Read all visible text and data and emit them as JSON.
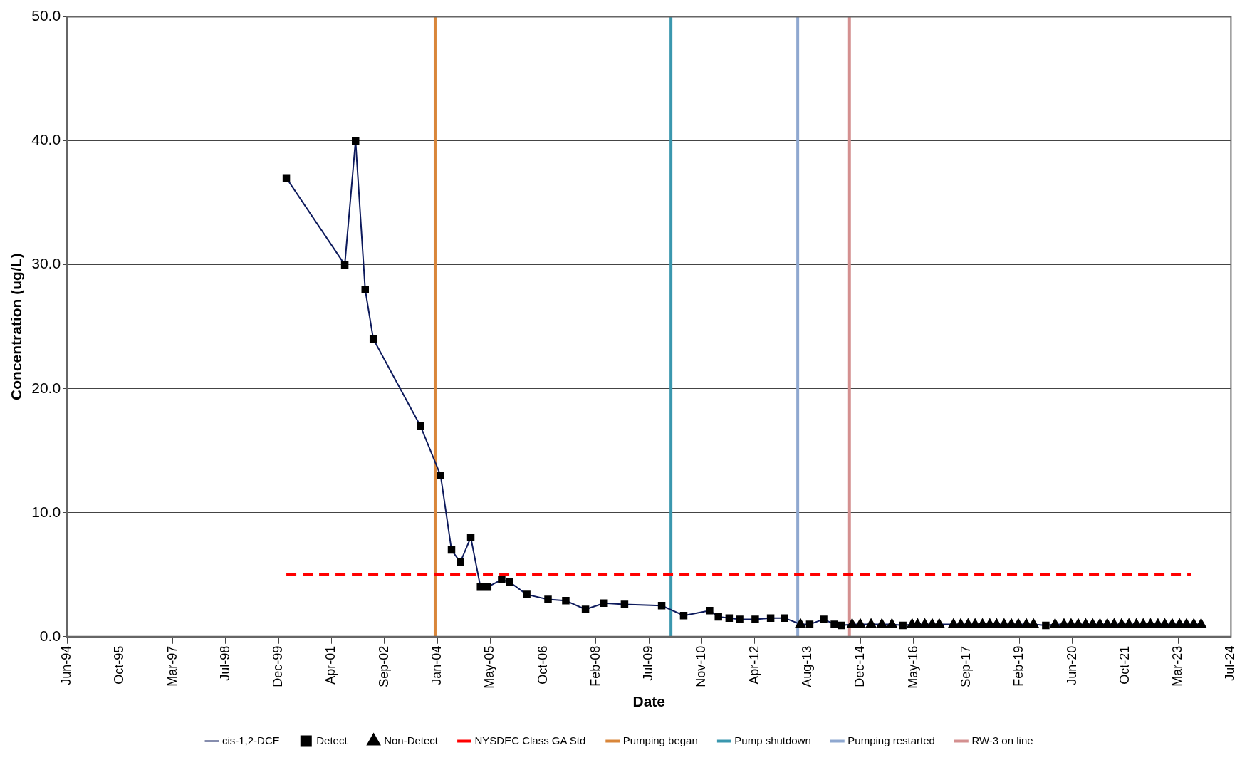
{
  "chart_data": {
    "type": "line",
    "xlabel": "Date",
    "ylabel": "Concentration (ug/L)",
    "xlim": [
      "1994-06-15",
      "2024-07-27"
    ],
    "xticks": [
      {
        "value": "1994-06-15",
        "label": "Jun-94"
      },
      {
        "value": "1995-10-28",
        "label": "Oct-95"
      },
      {
        "value": "1997-03-11",
        "label": "Mar-97"
      },
      {
        "value": "1998-07-24",
        "label": "Jul-98"
      },
      {
        "value": "1999-12-06",
        "label": "Dec-99"
      },
      {
        "value": "2001-04-19",
        "label": "Apr-01"
      },
      {
        "value": "2002-09-01",
        "label": "Sep-02"
      },
      {
        "value": "2004-01-14",
        "label": "Jan-04"
      },
      {
        "value": "2005-05-28",
        "label": "May-05"
      },
      {
        "value": "2006-10-10",
        "label": "Oct-06"
      },
      {
        "value": "2008-02-22",
        "label": "Feb-08"
      },
      {
        "value": "2009-07-06",
        "label": "Jul-09"
      },
      {
        "value": "2010-11-18",
        "label": "Nov-10"
      },
      {
        "value": "2012-04-01",
        "label": "Apr-12"
      },
      {
        "value": "2013-08-14",
        "label": "Aug-13"
      },
      {
        "value": "2014-12-27",
        "label": "Dec-14"
      },
      {
        "value": "2016-05-10",
        "label": "May-16"
      },
      {
        "value": "2017-09-22",
        "label": "Sep-17"
      },
      {
        "value": "2019-02-04",
        "label": "Feb-19"
      },
      {
        "value": "2020-06-18",
        "label": "Jun-20"
      },
      {
        "value": "2021-10-31",
        "label": "Oct-21"
      },
      {
        "value": "2023-03-15",
        "label": "Mar-23"
      },
      {
        "value": "2024-07-27",
        "label": "Jul-24"
      }
    ],
    "ylim": [
      0,
      50
    ],
    "yticks": [
      {
        "value": 0,
        "label": "0.0"
      },
      {
        "value": 10,
        "label": "10.0"
      },
      {
        "value": 20,
        "label": "20.0"
      },
      {
        "value": 30,
        "label": "30.0"
      },
      {
        "value": 40,
        "label": "40.0"
      },
      {
        "value": 50,
        "label": "50.0"
      }
    ],
    "grid": "y",
    "legend": "bottom",
    "series": [
      {
        "name": "cis-1,2-DCE",
        "type": "line",
        "marker": "none",
        "color": "#0d1a5c",
        "x": [
          "2000-02-17",
          "2001-08-22",
          "2001-12-02",
          "2002-03-03",
          "2002-05-19",
          "2003-08-07",
          "2004-02-14",
          "2004-05-27",
          "2004-08-18",
          "2004-11-25",
          "2005-02-25",
          "2005-05-04",
          "2005-09-13",
          "2005-11-28",
          "2006-05-08",
          "2006-11-25",
          "2007-05-12",
          "2007-11-14",
          "2008-05-08",
          "2008-11-17",
          "2009-11-03",
          "2010-05-30",
          "2011-01-30",
          "2011-04-23",
          "2011-08-03",
          "2011-11-10",
          "2012-04-05",
          "2012-08-29",
          "2013-01-08",
          "2013-06-07",
          "2013-09-02",
          "2014-01-12",
          "2014-04-23",
          "2014-06-28",
          "2014-10-08",
          "2014-12-24",
          "2015-04-05",
          "2015-07-16",
          "2015-10-19",
          "2016-01-30",
          "2016-04-27",
          "2016-06-18",
          "2016-08-25",
          "2016-11-03",
          "2017-01-08",
          "2017-05-23",
          "2017-07-30",
          "2017-10-08",
          "2017-12-13",
          "2018-02-21",
          "2018-05-01",
          "2018-07-05",
          "2018-09-13",
          "2018-11-21",
          "2019-01-26",
          "2019-04-12",
          "2019-06-18",
          "2019-10-12",
          "2020-01-08",
          "2020-04-01",
          "2020-06-07",
          "2020-08-14",
          "2020-10-23",
          "2020-12-28",
          "2021-03-07",
          "2021-05-15",
          "2021-07-19",
          "2021-09-27",
          "2021-12-06",
          "2022-02-14",
          "2022-04-20",
          "2022-06-28",
          "2022-09-06",
          "2022-11-10",
          "2023-01-19",
          "2023-03-29",
          "2023-06-03",
          "2023-08-11",
          "2023-10-19"
        ],
        "values": [
          37,
          30,
          40,
          28,
          24,
          17,
          13,
          7,
          6,
          8,
          4,
          4,
          4.6,
          4.4,
          3.4,
          3,
          2.9,
          2.2,
          2.7,
          2.6,
          2.5,
          1.7,
          2.1,
          1.6,
          1.5,
          1.4,
          1.4,
          1.5,
          1.5,
          1,
          1,
          1.4,
          1,
          0.9,
          1,
          1,
          1,
          1,
          1,
          0.9,
          1,
          1,
          1,
          1,
          1,
          1,
          1,
          1,
          1,
          1,
          1,
          1,
          1,
          1,
          1,
          1,
          1,
          0.9,
          1,
          1,
          1,
          1,
          1,
          1,
          1,
          1,
          1,
          1,
          1,
          1,
          1,
          1,
          1,
          1,
          1,
          1,
          1,
          1,
          1
        ]
      },
      {
        "name": "Detect",
        "type": "scatter",
        "marker": "square",
        "color": "#000000",
        "x": [
          "2000-02-17",
          "2001-08-22",
          "2001-12-02",
          "2002-03-03",
          "2002-05-19",
          "2003-08-07",
          "2004-02-14",
          "2004-05-27",
          "2004-08-18",
          "2004-11-25",
          "2005-02-25",
          "2005-05-04",
          "2005-09-13",
          "2005-11-28",
          "2006-05-08",
          "2006-11-25",
          "2007-05-12",
          "2007-11-14",
          "2008-05-08",
          "2008-11-17",
          "2009-11-03",
          "2010-05-30",
          "2011-01-30",
          "2011-04-23",
          "2011-08-03",
          "2011-11-10",
          "2012-04-05",
          "2012-08-29",
          "2013-01-08",
          "2013-09-02",
          "2014-01-12",
          "2014-04-23",
          "2014-06-28",
          "2016-01-30",
          "2019-10-12"
        ],
        "values": [
          37,
          30,
          40,
          28,
          24,
          17,
          13,
          7,
          6,
          8,
          4,
          4,
          4.6,
          4.4,
          3.4,
          3,
          2.9,
          2.2,
          2.7,
          2.6,
          2.5,
          1.7,
          2.1,
          1.6,
          1.5,
          1.4,
          1.4,
          1.5,
          1.5,
          1,
          1.4,
          1,
          0.9,
          0.9,
          0.9
        ]
      },
      {
        "name": "Non-Detect",
        "type": "scatter",
        "marker": "triangle",
        "color": "#000000",
        "x": [
          "2013-06-07",
          "2014-10-08",
          "2014-12-24",
          "2015-04-05",
          "2015-07-16",
          "2015-10-19",
          "2016-04-27",
          "2016-06-18",
          "2016-08-25",
          "2016-11-03",
          "2017-01-08",
          "2017-05-23",
          "2017-07-30",
          "2017-10-08",
          "2017-12-13",
          "2018-02-21",
          "2018-05-01",
          "2018-07-05",
          "2018-09-13",
          "2018-11-21",
          "2019-01-26",
          "2019-04-12",
          "2019-06-18",
          "2020-01-08",
          "2020-04-01",
          "2020-06-07",
          "2020-08-14",
          "2020-10-23",
          "2020-12-28",
          "2021-03-07",
          "2021-05-15",
          "2021-07-19",
          "2021-09-27",
          "2021-12-06",
          "2022-02-14",
          "2022-04-20",
          "2022-06-28",
          "2022-09-06",
          "2022-11-10",
          "2023-01-19",
          "2023-03-29",
          "2023-06-03",
          "2023-08-11",
          "2023-10-19"
        ],
        "values": [
          1,
          1,
          1,
          1,
          1,
          1,
          1,
          1,
          1,
          1,
          1,
          1,
          1,
          1,
          1,
          1,
          1,
          1,
          1,
          1,
          1,
          1,
          1,
          1,
          1,
          1,
          1,
          1,
          1,
          1,
          1,
          1,
          1,
          1,
          1,
          1,
          1,
          1,
          1,
          1,
          1,
          1,
          1,
          1
        ]
      },
      {
        "name": "NYSDEC Class GA Std",
        "type": "line",
        "marker": "none",
        "line_style": "dashed",
        "color": "#ff0000",
        "x": [
          "2000-02-17",
          "2023-07-19"
        ],
        "values": [
          5,
          5
        ]
      }
    ],
    "ref_lines": [
      {
        "axis": "x",
        "value": "2003-12-24",
        "label": "Pumping began",
        "color": "#d9863a"
      },
      {
        "axis": "x",
        "value": "2010-01-30",
        "label": "Pump shutdown",
        "color": "#3a97ae"
      },
      {
        "axis": "x",
        "value": "2013-05-12",
        "label": "Pumping restarted",
        "color": "#8fa8d0"
      },
      {
        "axis": "x",
        "value": "2014-09-13",
        "label": "RW-3 on line",
        "color": "#d49090"
      }
    ]
  }
}
